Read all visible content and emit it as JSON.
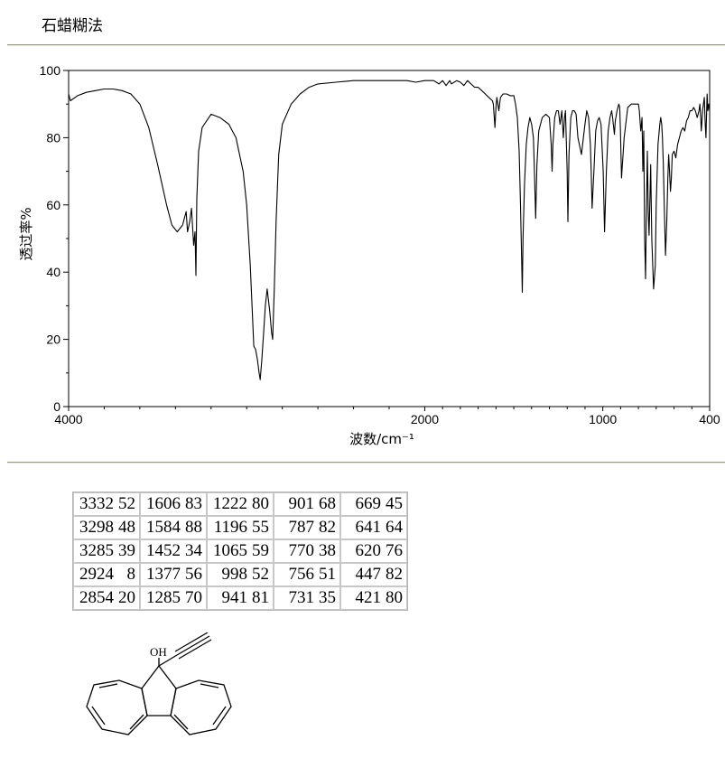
{
  "method": "石蜡糊法",
  "chart_data": {
    "type": "line",
    "xlabel": "波数/cm⁻¹",
    "ylabel": "透过率%",
    "xlim": [
      4000,
      400
    ],
    "ylim": [
      0,
      100
    ],
    "x_ticks": [
      4000,
      2000,
      1000,
      400
    ],
    "y_ticks": [
      0,
      20,
      40,
      60,
      80,
      100
    ],
    "x_tick_labels": [
      "4000",
      "2000",
      "1000",
      "400"
    ],
    "y_tick_labels": [
      "0",
      "20",
      "40",
      "60",
      "80",
      "100"
    ],
    "grid": false,
    "series": [
      {
        "x": [
          4000,
          3990,
          3950,
          3900,
          3850,
          3800,
          3750,
          3700,
          3650,
          3600,
          3550,
          3500,
          3450,
          3420,
          3390,
          3360,
          3340,
          3332,
          3320,
          3310,
          3298,
          3290,
          3285,
          3280,
          3270,
          3250,
          3200,
          3150,
          3100,
          3080,
          3060,
          3040,
          3020,
          3000,
          2980,
          2960,
          2950,
          2940,
          2930,
          2924,
          2915,
          2905,
          2895,
          2885,
          2870,
          2860,
          2854,
          2845,
          2835,
          2820,
          2800,
          2750,
          2700,
          2650,
          2600,
          2500,
          2400,
          2300,
          2200,
          2100,
          2050,
          2000,
          1950,
          1920,
          1900,
          1880,
          1860,
          1850,
          1820,
          1800,
          1780,
          1760,
          1740,
          1720,
          1700,
          1680,
          1660,
          1640,
          1620,
          1615,
          1606,
          1600,
          1595,
          1584,
          1575,
          1560,
          1540,
          1520,
          1500,
          1490,
          1480,
          1470,
          1462,
          1455,
          1452,
          1448,
          1440,
          1430,
          1420,
          1410,
          1400,
          1390,
          1385,
          1377,
          1370,
          1360,
          1340,
          1320,
          1300,
          1290,
          1285,
          1280,
          1270,
          1260,
          1250,
          1240,
          1230,
          1222,
          1215,
          1210,
          1200,
          1196,
          1190,
          1180,
          1170,
          1160,
          1150,
          1140,
          1120,
          1100,
          1090,
          1080,
          1070,
          1065,
          1060,
          1050,
          1040,
          1030,
          1020,
          1010,
          1005,
          998,
          990,
          980,
          970,
          960,
          950,
          945,
          941,
          935,
          930,
          920,
          910,
          905,
          901,
          895,
          880,
          860,
          840,
          820,
          800,
          795,
          787,
          780,
          775,
          770,
          765,
          760,
          756,
          750,
          745,
          740,
          735,
          731,
          725,
          715,
          705,
          700,
          690,
          680,
          675,
          669,
          665,
          660,
          655,
          648,
          641,
          635,
          630,
          625,
          620,
          615,
          610,
          600,
          590,
          580,
          570,
          560,
          550,
          540,
          530,
          520,
          510,
          500,
          490,
          480,
          470,
          460,
          455,
          450,
          447,
          444,
          440,
          430,
          425,
          421,
          418,
          414,
          410,
          405,
          400
        ],
        "y": [
          93,
          91,
          92.5,
          93.5,
          94,
          94.5,
          94.5,
          94,
          93,
          90,
          83,
          72,
          60,
          54,
          52,
          54,
          58,
          52,
          55,
          59,
          48,
          52,
          39,
          62,
          76,
          83,
          87,
          86,
          84,
          82,
          80,
          75,
          70,
          60,
          42,
          18,
          17,
          14,
          10,
          8,
          14,
          22,
          30,
          35,
          28,
          22,
          20,
          35,
          55,
          75,
          84,
          90,
          93,
          95,
          96,
          96.5,
          97,
          97,
          97,
          97,
          96.5,
          97,
          97,
          96,
          97,
          95.5,
          97,
          96,
          97,
          96.5,
          95.5,
          97,
          96,
          95,
          95,
          94,
          93,
          92,
          91,
          90,
          83,
          89,
          92,
          88,
          92,
          93,
          93,
          92.5,
          92.5,
          90,
          86,
          76,
          60,
          42,
          34,
          50,
          66,
          78,
          83,
          86,
          84,
          80,
          72,
          56,
          72,
          82,
          86,
          87,
          86,
          78,
          70,
          78,
          86,
          88,
          88,
          84,
          88,
          80,
          86,
          88,
          70,
          55,
          75,
          86,
          88,
          88,
          87,
          80,
          75,
          84,
          88,
          86,
          78,
          70,
          59,
          70,
          82,
          85,
          86,
          84,
          78,
          70,
          52,
          70,
          82,
          86,
          88,
          86,
          84,
          81,
          85,
          88,
          90,
          89,
          82,
          68,
          80,
          89,
          90,
          90,
          90,
          88,
          82,
          86,
          70,
          82,
          50,
          38,
          55,
          76,
          58,
          51,
          62,
          72,
          50,
          35,
          42,
          60,
          78,
          84,
          86,
          84,
          80,
          72,
          60,
          45,
          55,
          68,
          75,
          70,
          64,
          68,
          75,
          76,
          74,
          78,
          80,
          82,
          83,
          82,
          85,
          86,
          88,
          88,
          89,
          88,
          86,
          88,
          90,
          86,
          82,
          84,
          88,
          92,
          84,
          80,
          86,
          93,
          88,
          90,
          88
        ]
      }
    ]
  },
  "peak_table": [
    [
      "3332",
      "52",
      "1606",
      "83",
      "1222",
      "80",
      "901",
      "68",
      "669",
      "45"
    ],
    [
      "3298",
      "48",
      "1584",
      "88",
      "1196",
      "55",
      "787",
      "82",
      "641",
      "64"
    ],
    [
      "3285",
      "39",
      "1452",
      "34",
      "1065",
      "59",
      "770",
      "38",
      "620",
      "76"
    ],
    [
      "2924",
      "8",
      "1377",
      "56",
      "998",
      "52",
      "756",
      "51",
      "447",
      "82"
    ],
    [
      "2854",
      "20",
      "1285",
      "70",
      "941",
      "81",
      "731",
      "35",
      "421",
      "80"
    ]
  ],
  "structure": {
    "hydroxyl_label": "OH"
  }
}
